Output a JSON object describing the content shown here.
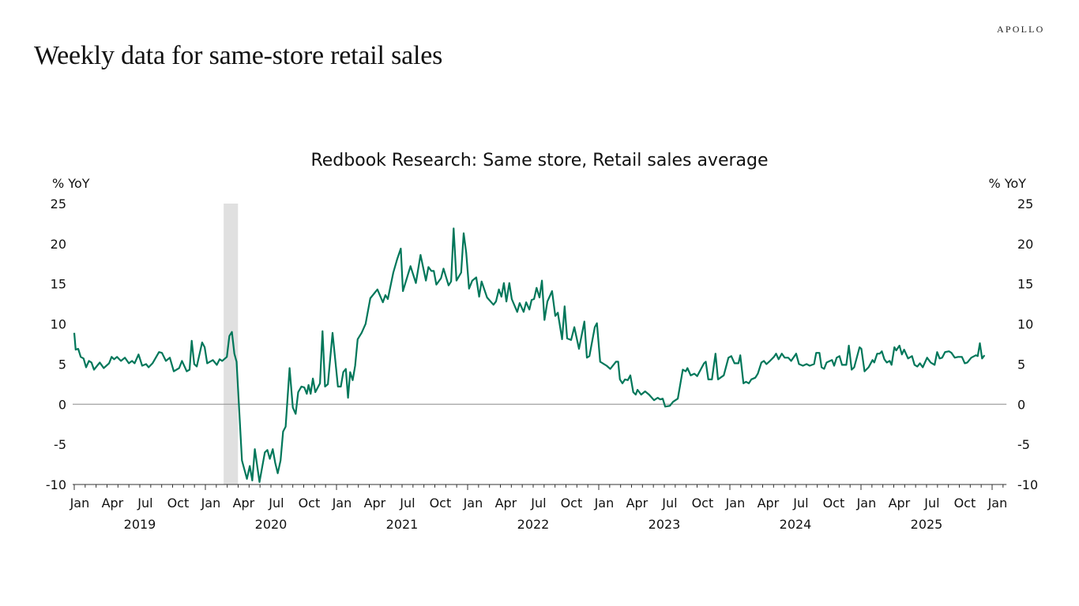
{
  "header": {
    "title": "Weekly data for same-store retail sales",
    "logo": "APOLLO"
  },
  "chart_data": {
    "type": "line",
    "title": "Redbook Research: Same store, Retail sales average",
    "ylabel_left": "% YoY",
    "ylabel_right": "% YoY",
    "ylim": [
      -10,
      25
    ],
    "yticks": [
      25,
      20,
      15,
      10,
      5,
      0,
      -5,
      -10
    ],
    "xlim": [
      "2019-01-01",
      "2026-02-10"
    ],
    "month_labels": [
      "Jan",
      "Apr",
      "Jul",
      "Oct"
    ],
    "final_month_label": "Jan",
    "year_labels": [
      "2019",
      "2020",
      "2021",
      "2022",
      "2023",
      "2024",
      "2025"
    ],
    "grid": false,
    "zero_line": true,
    "line_color": "#00775a",
    "recession_color": "#e0e0e0",
    "recession": {
      "start": "2020-02-21",
      "end": "2020-04-01"
    },
    "series": [
      {
        "points": [
          [
            "2019-01-01",
            8.9
          ],
          [
            "2019-01-05",
            6.8
          ],
          [
            "2019-01-12",
            6.9
          ],
          [
            "2019-01-19",
            5.9
          ],
          [
            "2019-01-27",
            5.7
          ],
          [
            "2019-02-03",
            4.6
          ],
          [
            "2019-02-11",
            5.4
          ],
          [
            "2019-02-18",
            5.2
          ],
          [
            "2019-02-25",
            4.3
          ],
          [
            "2019-03-13",
            5.2
          ],
          [
            "2019-03-24",
            4.5
          ],
          [
            "2019-04-08",
            5.1
          ],
          [
            "2019-04-15",
            5.9
          ],
          [
            "2019-04-22",
            5.6
          ],
          [
            "2019-04-30",
            5.9
          ],
          [
            "2019-05-11",
            5.4
          ],
          [
            "2019-05-22",
            5.8
          ],
          [
            "2019-06-02",
            5.1
          ],
          [
            "2019-06-11",
            5.4
          ],
          [
            "2019-06-18",
            5.1
          ],
          [
            "2019-06-29",
            6.2
          ],
          [
            "2019-07-09",
            4.8
          ],
          [
            "2019-07-20",
            5.0
          ],
          [
            "2019-07-27",
            4.6
          ],
          [
            "2019-08-07",
            5.1
          ],
          [
            "2019-08-25",
            6.5
          ],
          [
            "2019-09-02",
            6.4
          ],
          [
            "2019-09-13",
            5.4
          ],
          [
            "2019-09-24",
            5.8
          ],
          [
            "2019-10-05",
            4.1
          ],
          [
            "2019-10-20",
            4.5
          ],
          [
            "2019-10-28",
            5.4
          ],
          [
            "2019-11-10",
            4.1
          ],
          [
            "2019-11-18",
            4.3
          ],
          [
            "2019-11-24",
            7.9
          ],
          [
            "2019-12-01",
            5.0
          ],
          [
            "2019-12-08",
            4.7
          ],
          [
            "2019-12-23",
            7.7
          ],
          [
            "2019-12-30",
            7.1
          ],
          [
            "2020-01-06",
            5.1
          ],
          [
            "2020-01-22",
            5.5
          ],
          [
            "2020-02-02",
            4.9
          ],
          [
            "2020-02-10",
            5.6
          ],
          [
            "2020-02-17",
            5.4
          ],
          [
            "2020-03-01",
            5.9
          ],
          [
            "2020-03-08",
            8.5
          ],
          [
            "2020-03-15",
            9.0
          ],
          [
            "2020-03-22",
            6.3
          ],
          [
            "2020-03-28",
            5.3
          ],
          [
            "2020-04-12",
            -7.0
          ],
          [
            "2020-04-26",
            -9.3
          ],
          [
            "2020-05-04",
            -7.7
          ],
          [
            "2020-05-11",
            -9.5
          ],
          [
            "2020-05-18",
            -5.6
          ],
          [
            "2020-05-31",
            -9.7
          ],
          [
            "2020-06-15",
            -6.0
          ],
          [
            "2020-06-22",
            -5.7
          ],
          [
            "2020-06-29",
            -6.8
          ],
          [
            "2020-07-07",
            -5.6
          ],
          [
            "2020-07-14",
            -7.3
          ],
          [
            "2020-07-21",
            -8.6
          ],
          [
            "2020-07-29",
            -7.0
          ],
          [
            "2020-08-05",
            -3.4
          ],
          [
            "2020-08-12",
            -2.8
          ],
          [
            "2020-08-23",
            4.5
          ],
          [
            "2020-09-01",
            -0.4
          ],
          [
            "2020-09-09",
            -1.2
          ],
          [
            "2020-09-16",
            1.5
          ],
          [
            "2020-09-25",
            2.2
          ],
          [
            "2020-10-03",
            2.1
          ],
          [
            "2020-10-10",
            1.3
          ],
          [
            "2020-10-15",
            2.4
          ],
          [
            "2020-10-21",
            1.3
          ],
          [
            "2020-10-27",
            3.2
          ],
          [
            "2020-11-03",
            1.5
          ],
          [
            "2020-11-16",
            2.6
          ],
          [
            "2020-11-23",
            9.1
          ],
          [
            "2020-11-30",
            2.2
          ],
          [
            "2020-12-08",
            2.5
          ],
          [
            "2020-12-21",
            8.9
          ],
          [
            "2021-01-05",
            2.2
          ],
          [
            "2021-01-13",
            2.2
          ],
          [
            "2021-01-20",
            4.0
          ],
          [
            "2021-01-27",
            4.4
          ],
          [
            "2021-02-02",
            0.8
          ],
          [
            "2021-02-08",
            4.0
          ],
          [
            "2021-02-15",
            3.0
          ],
          [
            "2021-02-22",
            4.8
          ],
          [
            "2021-03-01",
            8.1
          ],
          [
            "2021-03-12",
            8.9
          ],
          [
            "2021-03-23",
            10.0
          ],
          [
            "2021-04-05",
            13.2
          ],
          [
            "2021-04-25",
            14.3
          ],
          [
            "2021-05-10",
            12.7
          ],
          [
            "2021-05-17",
            13.6
          ],
          [
            "2021-05-24",
            13.1
          ],
          [
            "2021-06-08",
            16.4
          ],
          [
            "2021-06-19",
            18.1
          ],
          [
            "2021-06-29",
            19.4
          ],
          [
            "2021-07-05",
            14.1
          ],
          [
            "2021-07-26",
            17.2
          ],
          [
            "2021-08-10",
            15.1
          ],
          [
            "2021-08-23",
            18.6
          ],
          [
            "2021-09-07",
            15.4
          ],
          [
            "2021-09-14",
            17.1
          ],
          [
            "2021-09-22",
            16.6
          ],
          [
            "2021-09-29",
            16.6
          ],
          [
            "2021-10-06",
            14.9
          ],
          [
            "2021-10-19",
            15.7
          ],
          [
            "2021-10-26",
            16.9
          ],
          [
            "2021-11-09",
            14.8
          ],
          [
            "2021-11-16",
            15.3
          ],
          [
            "2021-11-23",
            21.9
          ],
          [
            "2021-12-01",
            15.4
          ],
          [
            "2021-12-14",
            16.4
          ],
          [
            "2021-12-21",
            21.3
          ],
          [
            "2021-12-28",
            18.9
          ],
          [
            "2022-01-05",
            14.4
          ],
          [
            "2022-01-14",
            15.4
          ],
          [
            "2022-01-25",
            15.8
          ],
          [
            "2022-02-02",
            13.4
          ],
          [
            "2022-02-09",
            15.3
          ],
          [
            "2022-02-24",
            13.3
          ],
          [
            "2022-03-14",
            12.4
          ],
          [
            "2022-03-21",
            12.8
          ],
          [
            "2022-03-29",
            14.3
          ],
          [
            "2022-04-05",
            13.4
          ],
          [
            "2022-04-12",
            15.1
          ],
          [
            "2022-04-19",
            12.8
          ],
          [
            "2022-04-27",
            15.1
          ],
          [
            "2022-05-04",
            13.1
          ],
          [
            "2022-05-19",
            11.5
          ],
          [
            "2022-05-26",
            12.6
          ],
          [
            "2022-06-06",
            11.5
          ],
          [
            "2022-06-13",
            12.7
          ],
          [
            "2022-06-22",
            11.8
          ],
          [
            "2022-06-28",
            13.0
          ],
          [
            "2022-07-05",
            13.1
          ],
          [
            "2022-07-12",
            14.5
          ],
          [
            "2022-07-20",
            13.3
          ],
          [
            "2022-07-27",
            15.4
          ],
          [
            "2022-08-03",
            10.5
          ],
          [
            "2022-08-11",
            12.8
          ],
          [
            "2022-08-24",
            14.1
          ],
          [
            "2022-09-02",
            11.0
          ],
          [
            "2022-09-09",
            11.4
          ],
          [
            "2022-09-21",
            8.1
          ],
          [
            "2022-09-28",
            12.2
          ],
          [
            "2022-10-05",
            8.2
          ],
          [
            "2022-10-16",
            8.0
          ],
          [
            "2022-10-25",
            9.6
          ],
          [
            "2022-11-07",
            6.9
          ],
          [
            "2022-11-22",
            10.3
          ],
          [
            "2022-11-29",
            5.8
          ],
          [
            "2022-12-06",
            6.0
          ],
          [
            "2022-12-21",
            9.6
          ],
          [
            "2022-12-27",
            10.1
          ],
          [
            "2023-01-05",
            5.3
          ],
          [
            "2023-01-23",
            4.8
          ],
          [
            "2023-02-02",
            4.4
          ],
          [
            "2023-02-18",
            5.3
          ],
          [
            "2023-02-24",
            5.3
          ],
          [
            "2023-03-01",
            3.1
          ],
          [
            "2023-03-08",
            2.6
          ],
          [
            "2023-03-15",
            3.1
          ],
          [
            "2023-03-23",
            3.0
          ],
          [
            "2023-03-30",
            3.6
          ],
          [
            "2023-04-07",
            1.5
          ],
          [
            "2023-04-14",
            1.2
          ],
          [
            "2023-04-19",
            1.8
          ],
          [
            "2023-04-29",
            1.2
          ],
          [
            "2023-05-10",
            1.6
          ],
          [
            "2023-05-21",
            1.2
          ],
          [
            "2023-06-04",
            0.5
          ],
          [
            "2023-06-14",
            0.8
          ],
          [
            "2023-06-21",
            0.6
          ],
          [
            "2023-06-28",
            0.7
          ],
          [
            "2023-07-05",
            -0.3
          ],
          [
            "2023-07-18",
            -0.2
          ],
          [
            "2023-07-27",
            0.3
          ],
          [
            "2023-08-09",
            0.7
          ],
          [
            "2023-08-23",
            4.3
          ],
          [
            "2023-08-31",
            4.1
          ],
          [
            "2023-09-05",
            4.5
          ],
          [
            "2023-09-14",
            3.6
          ],
          [
            "2023-09-24",
            3.8
          ],
          [
            "2023-10-02",
            3.5
          ],
          [
            "2023-10-21",
            5.1
          ],
          [
            "2023-10-26",
            5.3
          ],
          [
            "2023-11-02",
            3.1
          ],
          [
            "2023-11-12",
            3.1
          ],
          [
            "2023-11-22",
            6.3
          ],
          [
            "2023-11-29",
            3.1
          ],
          [
            "2023-12-15",
            3.6
          ],
          [
            "2023-12-28",
            5.8
          ],
          [
            "2024-01-05",
            6.0
          ],
          [
            "2024-01-14",
            5.1
          ],
          [
            "2024-01-25",
            5.1
          ],
          [
            "2024-01-30",
            6.1
          ],
          [
            "2024-02-08",
            2.6
          ],
          [
            "2024-02-15",
            2.8
          ],
          [
            "2024-02-23",
            2.6
          ],
          [
            "2024-03-01",
            3.1
          ],
          [
            "2024-03-12",
            3.3
          ],
          [
            "2024-03-19",
            3.8
          ],
          [
            "2024-03-29",
            5.2
          ],
          [
            "2024-04-05",
            5.4
          ],
          [
            "2024-04-12",
            5.0
          ],
          [
            "2024-04-22",
            5.4
          ],
          [
            "2024-05-03",
            5.9
          ],
          [
            "2024-05-09",
            6.3
          ],
          [
            "2024-05-16",
            5.6
          ],
          [
            "2024-05-25",
            6.3
          ],
          [
            "2024-06-02",
            5.8
          ],
          [
            "2024-06-12",
            5.8
          ],
          [
            "2024-06-20",
            5.4
          ],
          [
            "2024-07-04",
            6.3
          ],
          [
            "2024-07-12",
            5.0
          ],
          [
            "2024-07-23",
            4.8
          ],
          [
            "2024-08-02",
            5.0
          ],
          [
            "2024-08-11",
            4.8
          ],
          [
            "2024-08-23",
            5.0
          ],
          [
            "2024-08-29",
            6.4
          ],
          [
            "2024-09-07",
            6.4
          ],
          [
            "2024-09-13",
            4.6
          ],
          [
            "2024-09-20",
            4.4
          ],
          [
            "2024-09-27",
            5.2
          ],
          [
            "2024-10-12",
            5.5
          ],
          [
            "2024-10-18",
            4.8
          ],
          [
            "2024-10-25",
            5.8
          ],
          [
            "2024-11-02",
            6.0
          ],
          [
            "2024-11-09",
            4.9
          ],
          [
            "2024-11-21",
            4.9
          ],
          [
            "2024-11-28",
            7.3
          ],
          [
            "2024-12-06",
            4.3
          ],
          [
            "2024-12-13",
            4.6
          ],
          [
            "2024-12-28",
            7.1
          ],
          [
            "2025-01-02",
            6.9
          ],
          [
            "2025-01-11",
            4.1
          ],
          [
            "2025-01-22",
            4.6
          ],
          [
            "2025-02-02",
            5.5
          ],
          [
            "2025-02-07",
            5.2
          ],
          [
            "2025-02-15",
            6.3
          ],
          [
            "2025-02-22",
            6.3
          ],
          [
            "2025-02-28",
            6.6
          ],
          [
            "2025-03-07",
            5.6
          ],
          [
            "2025-03-14",
            5.2
          ],
          [
            "2025-03-22",
            5.4
          ],
          [
            "2025-03-27",
            4.9
          ],
          [
            "2025-04-04",
            7.1
          ],
          [
            "2025-04-09",
            6.7
          ],
          [
            "2025-04-18",
            7.3
          ],
          [
            "2025-04-25",
            6.2
          ],
          [
            "2025-05-01",
            6.8
          ],
          [
            "2025-05-12",
            5.7
          ],
          [
            "2025-05-23",
            6.0
          ],
          [
            "2025-05-30",
            4.9
          ],
          [
            "2025-06-07",
            4.7
          ],
          [
            "2025-06-14",
            5.1
          ],
          [
            "2025-06-22",
            4.6
          ],
          [
            "2025-07-04",
            5.8
          ],
          [
            "2025-07-14",
            5.2
          ],
          [
            "2025-07-25",
            4.9
          ],
          [
            "2025-08-01",
            6.5
          ],
          [
            "2025-08-08",
            5.7
          ],
          [
            "2025-08-15",
            5.8
          ],
          [
            "2025-08-23",
            6.5
          ],
          [
            "2025-09-03",
            6.6
          ],
          [
            "2025-09-10",
            6.4
          ],
          [
            "2025-09-19",
            5.8
          ],
          [
            "2025-09-28",
            5.9
          ],
          [
            "2025-10-09",
            5.9
          ],
          [
            "2025-10-17",
            5.1
          ],
          [
            "2025-10-24",
            5.2
          ],
          [
            "2025-11-04",
            5.8
          ],
          [
            "2025-11-17",
            6.1
          ],
          [
            "2025-11-22",
            6.0
          ],
          [
            "2025-11-28",
            7.6
          ],
          [
            "2025-12-04",
            5.7
          ],
          [
            "2025-12-11",
            6.1
          ]
        ]
      }
    ]
  }
}
